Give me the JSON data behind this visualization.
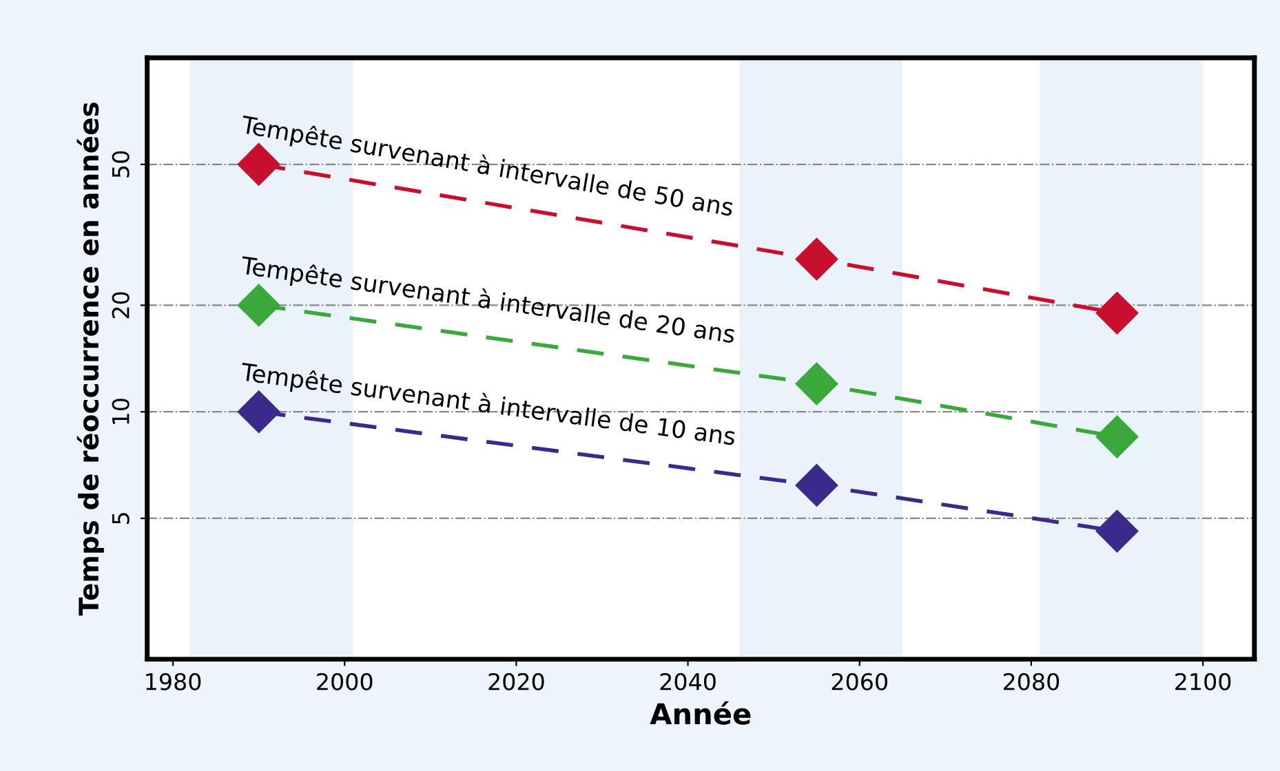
{
  "chart_data": {
    "type": "line",
    "xlabel": "Année",
    "ylabel": "Temps de réoccurrence en années",
    "x": [
      1990,
      2055,
      2090
    ],
    "series": [
      {
        "name": "Tempête survenant à intervalle de 50 ans",
        "color": "#c8102e",
        "values": [
          50,
          27,
          19
        ]
      },
      {
        "name": "Tempête survenant à intervalle de 20 ans",
        "color": "#3aa83a",
        "values": [
          20,
          12,
          8.5
        ]
      },
      {
        "name": "Tempête survenant à intervalle de 10 ans",
        "color": "#3b2a8c",
        "values": [
          10,
          6.2,
          4.6
        ]
      }
    ],
    "log": "y",
    "xlim": [
      1977,
      2106
    ],
    "xticks": [
      1980,
      2000,
      2020,
      2040,
      2060,
      2080,
      2100
    ],
    "ylim": [
      2,
      100
    ],
    "yticks": [
      5,
      10,
      20,
      50
    ],
    "bands": [
      {
        "axis": "x",
        "from": 1982,
        "to": 2001,
        "color": "#eaf2fa"
      },
      {
        "axis": "x",
        "from": 2046,
        "to": 2065,
        "color": "#eaf2fa"
      },
      {
        "axis": "x",
        "from": 2081,
        "to": 2100,
        "color": "#eaf2fa"
      }
    ],
    "grid": "y",
    "legend": false,
    "marker": "diamond",
    "line_style": "dashed"
  }
}
